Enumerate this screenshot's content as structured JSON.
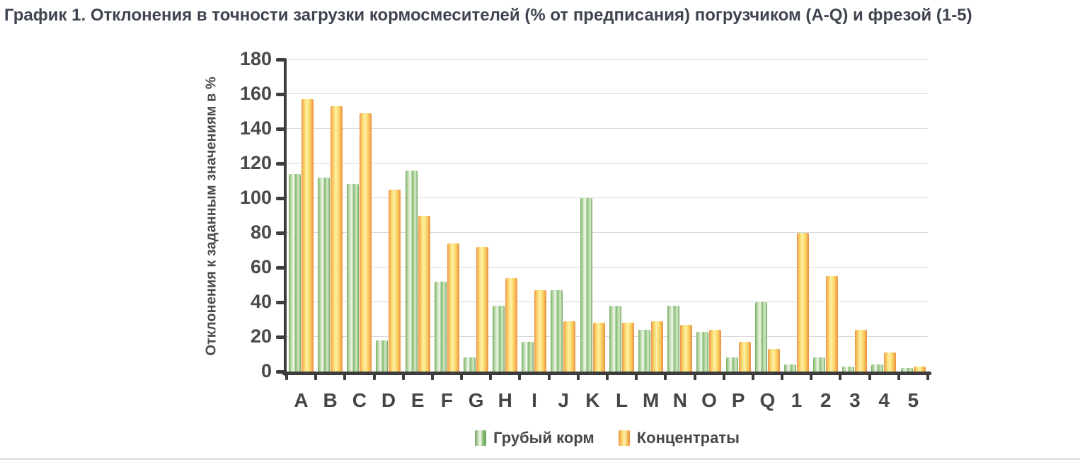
{
  "title": "График 1. Отклонения в точности загрузки кормосмесителей (% от предписания) погрузчиком (A-Q) и фрезой (1-5)",
  "colors": {
    "green_series": "#7db269",
    "orange_series": "#f5b050",
    "axis": "#3d3d3d",
    "grid": "#dadada",
    "text": "#4a4a4a",
    "title_text": "#3f4550"
  },
  "chart_data": {
    "type": "bar",
    "title": "График 1. Отклонения в точности загрузки кормосмесителей (% от предписания) погрузчиком (A-Q) и фрезой (1-5)",
    "xlabel": "",
    "ylabel": "Отклонения к заданным значениям в %",
    "ylim": [
      0,
      180
    ],
    "ytick_step": 20,
    "grid": true,
    "legend_position": "bottom",
    "categories": [
      "A",
      "B",
      "C",
      "D",
      "E",
      "F",
      "G",
      "H",
      "I",
      "J",
      "K",
      "L",
      "M",
      "N",
      "O",
      "P",
      "Q",
      "1",
      "2",
      "3",
      "4",
      "5"
    ],
    "series": [
      {
        "name": "Грубый корм",
        "color_key": "green",
        "values": [
          114,
          112,
          108,
          18,
          116,
          52,
          8,
          38,
          17,
          47,
          100,
          38,
          24,
          38,
          23,
          8,
          40,
          4,
          8,
          3,
          4,
          2
        ]
      },
      {
        "name": "Концентраты",
        "color_key": "orange",
        "values": [
          157,
          153,
          149,
          105,
          90,
          74,
          72,
          54,
          47,
          29,
          28,
          28,
          29,
          27,
          24,
          17,
          13,
          80,
          55,
          24,
          11,
          3
        ]
      }
    ]
  }
}
